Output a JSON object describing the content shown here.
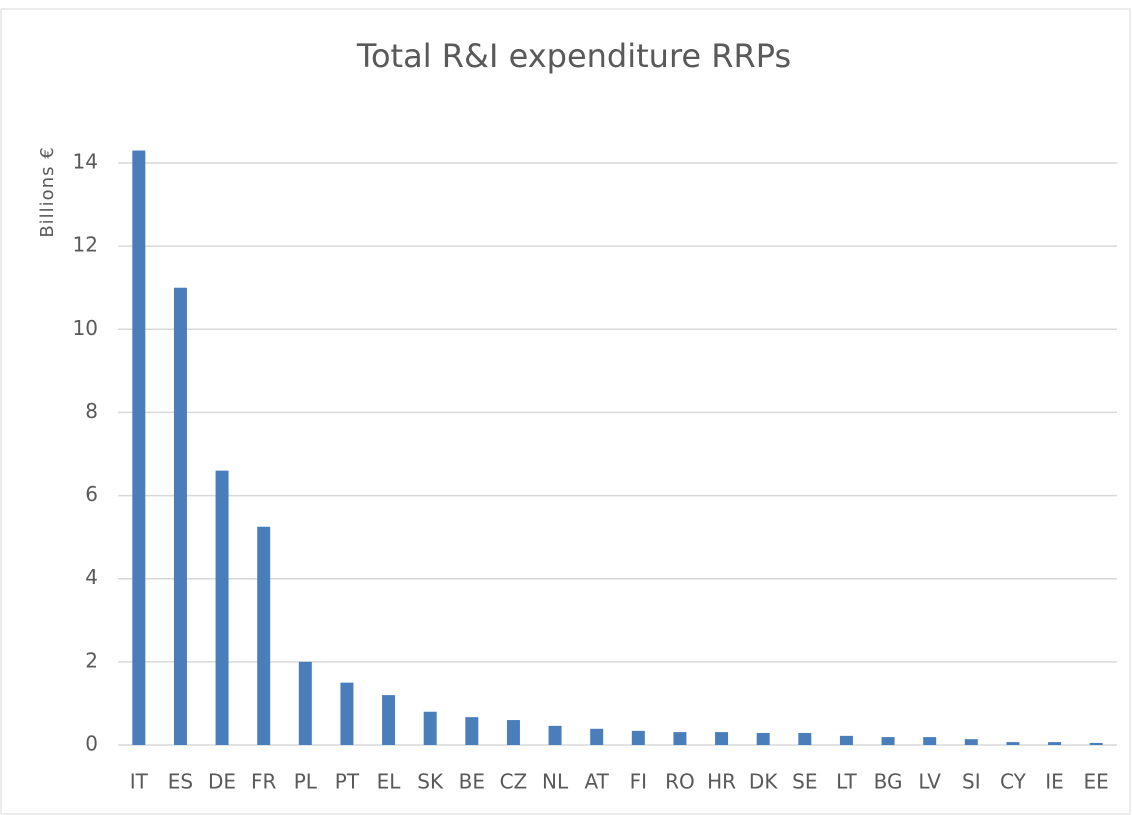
{
  "chart_data": {
    "type": "bar",
    "title": "Total R&I expenditure RRPs",
    "y_label": "Billions €",
    "categories": [
      "IT",
      "ES",
      "DE",
      "FR",
      "PL",
      "PT",
      "EL",
      "SK",
      "BE",
      "CZ",
      "NL",
      "AT",
      "FI",
      "RO",
      "HR",
      "DK",
      "SE",
      "LT",
      "BG",
      "LV",
      "SI",
      "CY",
      "IE",
      "EE"
    ],
    "values": [
      14.3,
      11.0,
      6.6,
      5.25,
      2.0,
      1.5,
      1.2,
      0.8,
      0.67,
      0.6,
      0.46,
      0.39,
      0.34,
      0.31,
      0.31,
      0.29,
      0.29,
      0.22,
      0.19,
      0.19,
      0.14,
      0.07,
      0.07,
      0.05
    ],
    "color": "#4a7ebb",
    "ylim": [
      0,
      14
    ],
    "yticks": [
      0,
      2,
      4,
      6,
      8,
      10,
      12,
      14
    ],
    "grid": true
  }
}
